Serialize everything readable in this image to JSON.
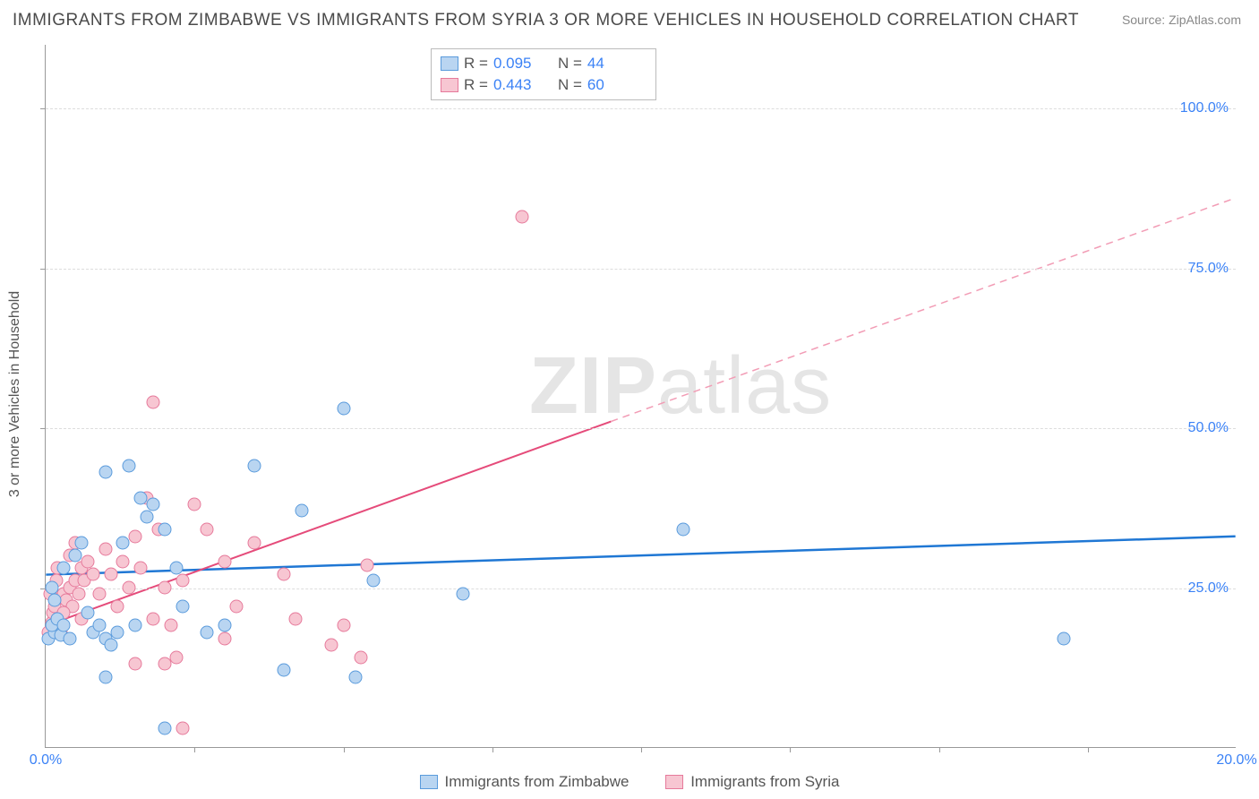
{
  "title": "IMMIGRANTS FROM ZIMBABWE VS IMMIGRANTS FROM SYRIA 3 OR MORE VEHICLES IN HOUSEHOLD CORRELATION CHART",
  "source": "Source: ZipAtlas.com",
  "ylabel": "3 or more Vehicles in Household",
  "watermark_bold": "ZIP",
  "watermark_rest": "atlas",
  "xlim": [
    0,
    20
  ],
  "ylim": [
    0,
    110
  ],
  "xticks_minor": [
    2.5,
    5,
    7.5,
    10,
    12.5,
    15,
    17.5
  ],
  "xticks_labeled": [
    {
      "v": 0,
      "l": "0.0%"
    },
    {
      "v": 20,
      "l": "20.0%"
    }
  ],
  "yticks": [
    {
      "v": 25,
      "l": "25.0%"
    },
    {
      "v": 50,
      "l": "50.0%"
    },
    {
      "v": 75,
      "l": "75.0%"
    },
    {
      "v": 100,
      "l": "100.0%"
    }
  ],
  "series": {
    "A": {
      "name": "Immigrants from Zimbabwe",
      "fill": "#b9d5f1",
      "stroke": "#5a9bdc",
      "R": "0.095",
      "N": "44",
      "trend": {
        "x1": 0,
        "y1": 27,
        "x2": 20,
        "y2": 33,
        "color": "#1f77d4",
        "width": 2.5,
        "dash": ""
      },
      "points": [
        [
          0.05,
          17
        ],
        [
          0.15,
          18
        ],
        [
          0.1,
          19
        ],
        [
          0.25,
          17.5
        ],
        [
          0.2,
          20
        ],
        [
          0.3,
          19
        ],
        [
          0.15,
          23
        ],
        [
          0.4,
          17
        ],
        [
          0.1,
          25
        ],
        [
          0.5,
          30
        ],
        [
          0.6,
          32
        ],
        [
          0.3,
          28
        ],
        [
          0.7,
          21
        ],
        [
          0.8,
          18
        ],
        [
          0.9,
          19
        ],
        [
          1.0,
          17
        ],
        [
          1.1,
          16
        ],
        [
          1.2,
          18
        ],
        [
          1.3,
          32
        ],
        [
          1.4,
          44
        ],
        [
          1.0,
          43
        ],
        [
          1.6,
          39
        ],
        [
          1.7,
          36
        ],
        [
          1.8,
          38
        ],
        [
          2.0,
          34
        ],
        [
          2.2,
          28
        ],
        [
          2.3,
          22
        ],
        [
          1.5,
          19
        ],
        [
          1.0,
          11
        ],
        [
          2.7,
          18
        ],
        [
          2.0,
          3
        ],
        [
          3.5,
          44
        ],
        [
          4.3,
          37
        ],
        [
          3.0,
          19
        ],
        [
          5.0,
          53
        ],
        [
          5.5,
          26
        ],
        [
          4.0,
          12
        ],
        [
          5.2,
          11
        ],
        [
          7.0,
          24
        ],
        [
          10.7,
          34
        ],
        [
          17.1,
          17
        ]
      ]
    },
    "B": {
      "name": "Immigrants from Syria",
      "fill": "#f7c6d2",
      "stroke": "#e67a9b",
      "R": "0.443",
      "N": "60",
      "trend_solid": {
        "x1": 0,
        "y1": 19,
        "x2": 9.5,
        "y2": 51,
        "color": "#e54b7a",
        "width": 2,
        "dash": ""
      },
      "trend_dash": {
        "x1": 9.5,
        "y1": 51,
        "x2": 20,
        "y2": 86,
        "color": "#f29cb5",
        "width": 1.5,
        "dash": "8,6"
      },
      "points": [
        [
          0.05,
          18
        ],
        [
          0.1,
          19.5
        ],
        [
          0.12,
          21
        ],
        [
          0.15,
          22
        ],
        [
          0.2,
          20
        ],
        [
          0.08,
          24
        ],
        [
          0.25,
          18
        ],
        [
          0.3,
          24
        ],
        [
          0.18,
          26
        ],
        [
          0.35,
          23
        ],
        [
          0.4,
          25
        ],
        [
          0.2,
          28
        ],
        [
          0.45,
          22
        ],
        [
          0.5,
          26
        ],
        [
          0.3,
          21
        ],
        [
          0.55,
          24
        ],
        [
          0.6,
          28
        ],
        [
          0.4,
          30
        ],
        [
          0.65,
          26
        ],
        [
          0.7,
          29
        ],
        [
          0.5,
          32
        ],
        [
          0.8,
          27
        ],
        [
          0.9,
          24
        ],
        [
          0.6,
          20
        ],
        [
          1.0,
          31
        ],
        [
          1.1,
          27
        ],
        [
          1.2,
          22
        ],
        [
          1.3,
          29
        ],
        [
          1.4,
          25
        ],
        [
          1.5,
          33
        ],
        [
          1.6,
          28
        ],
        [
          1.7,
          39
        ],
        [
          1.8,
          20
        ],
        [
          1.9,
          34
        ],
        [
          2.0,
          25
        ],
        [
          2.1,
          19
        ],
        [
          2.2,
          14
        ],
        [
          2.3,
          26
        ],
        [
          2.5,
          38
        ],
        [
          2.7,
          34
        ],
        [
          2.0,
          13
        ],
        [
          1.5,
          13
        ],
        [
          3.0,
          29
        ],
        [
          3.2,
          22
        ],
        [
          3.5,
          32
        ],
        [
          3.0,
          17
        ],
        [
          4.0,
          27
        ],
        [
          4.2,
          20
        ],
        [
          2.3,
          3
        ],
        [
          4.8,
          16
        ],
        [
          5.0,
          19
        ],
        [
          5.3,
          14
        ],
        [
          5.4,
          28.5
        ],
        [
          1.8,
          54
        ],
        [
          8.0,
          83
        ]
      ]
    }
  },
  "legend_r_label": "R =",
  "legend_n_label": "N ="
}
